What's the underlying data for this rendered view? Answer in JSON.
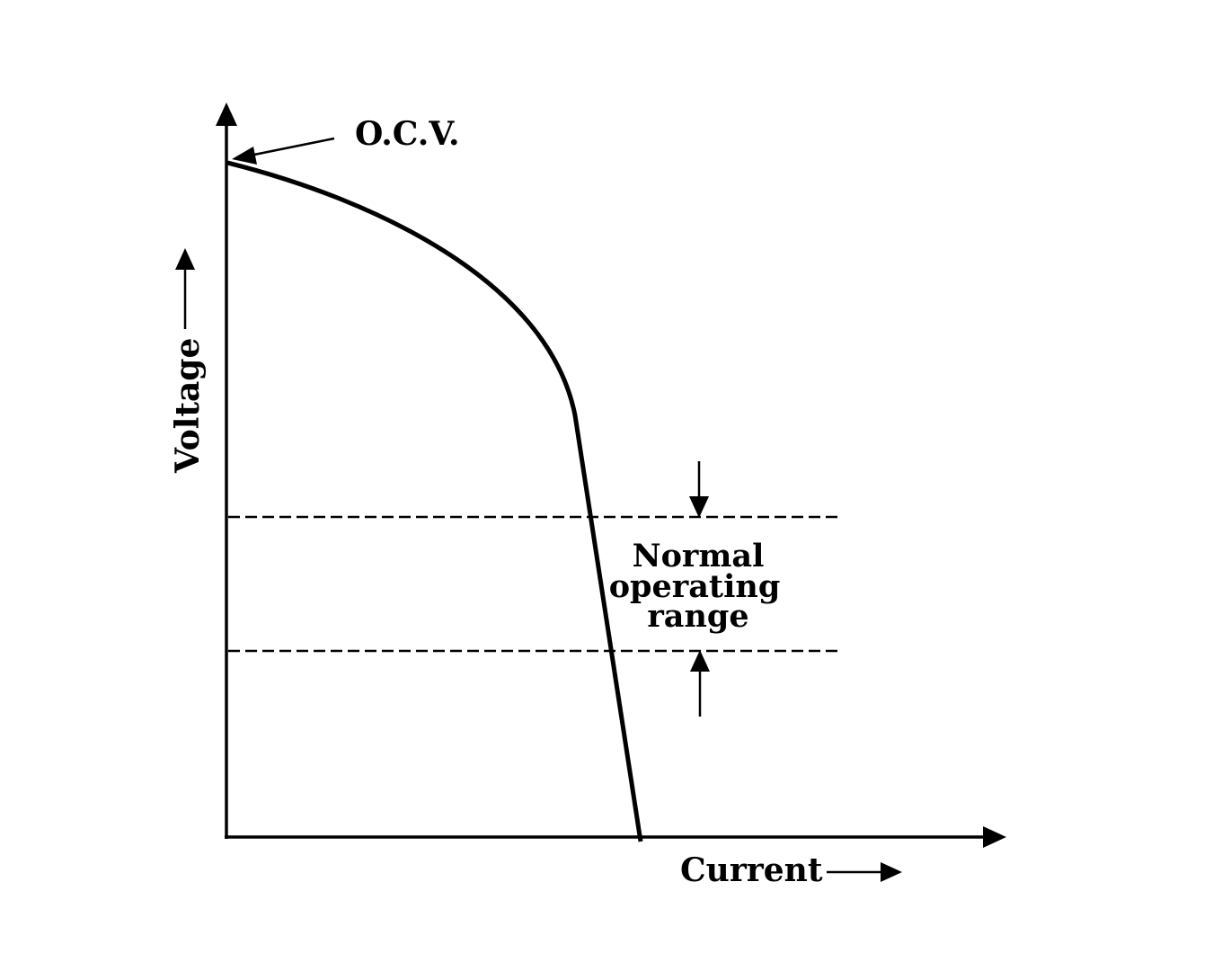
{
  "diagram": {
    "annotations": {
      "ocv": "O.C.V.",
      "range_line1": "Normal",
      "range_line2": "operating",
      "range_line3": "range"
    },
    "axes": {
      "y_label": "Voltage",
      "x_label": "Current"
    },
    "colors": {
      "ink": "#000000",
      "background": "#ffffff"
    }
  }
}
